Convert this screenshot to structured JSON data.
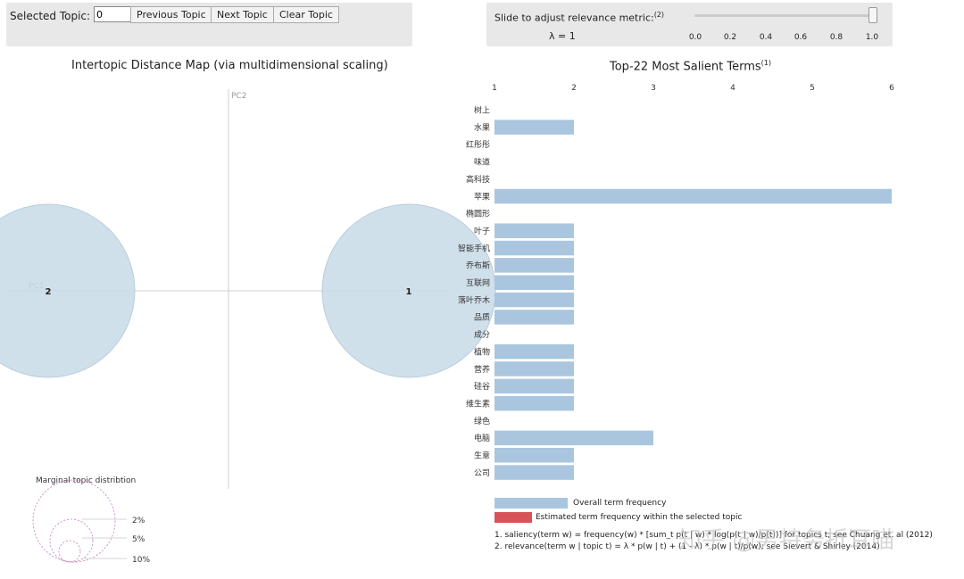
{
  "controls": {
    "selected_topic_label": "Selected Topic:",
    "selected_topic_value": "0",
    "prev_label": "Previous Topic",
    "next_label": "Next Topic",
    "clear_label": "Clear Topic",
    "slider_label": "Slide to adjust relevance metric:",
    "slider_sup": "(2)",
    "lambda_text": "λ = 1",
    "slider_ticks": [
      "0.0",
      "0.2",
      "0.4",
      "0.6",
      "0.8",
      "1.0"
    ],
    "slider_value": 1.0
  },
  "left_title": "Intertopic Distance Map (via multidimensional scaling)",
  "right_title": "Top-22 Most Salient Terms",
  "right_title_sup": "(1)",
  "chart_data": [
    {
      "type": "scatter",
      "title": "Intertopic Distance Map (via multidimensional scaling)",
      "xlabel": "PC1",
      "ylabel": "PC2",
      "topics": [
        {
          "label": "1",
          "pc1": 0.5,
          "pc2": 0.0,
          "size": 1.0
        },
        {
          "label": "2",
          "pc1": -0.5,
          "pc2": 0.0,
          "size": 1.0
        }
      ],
      "marginal_title": "Marginal topic distribtion",
      "marginal_legend": [
        "2%",
        "5%",
        "10%"
      ]
    },
    {
      "type": "bar",
      "title": "Top-22 Most Salient Terms",
      "x_ticks": [
        1,
        2,
        3,
        4,
        5,
        6
      ],
      "xlim": [
        1,
        6
      ],
      "categories": [
        "树上",
        "水果",
        "红彤彤",
        "味道",
        "高科技",
        "苹果",
        "椭圆形",
        "叶子",
        "智能手机",
        "乔布斯",
        "互联网",
        "落叶乔木",
        "品质",
        "成分",
        "植物",
        "营养",
        "硅谷",
        "维生素",
        "绿色",
        "电脑",
        "生意",
        "公司"
      ],
      "values": [
        1,
        2,
        1,
        1,
        1,
        6,
        1,
        2,
        2,
        2,
        2,
        2,
        2,
        1,
        2,
        2,
        2,
        2,
        1,
        3,
        2,
        2
      ],
      "legend": [
        "Overall term frequency",
        "Estimated term frequency within the selected topic"
      ],
      "colors": {
        "overall": "#a9c6de",
        "selected": "#d6545a"
      }
    }
  ],
  "notes": [
    "1. saliency(term w) = frequency(w) * [sum_t p(t | w) * log(p(t | w)/p(t))] for topics t; see Chuang et. al (2012)",
    "2. relevance(term w | topic t) = λ * p(w | t) + (1 - λ) * p(w | t)/p(w); see Sievert & Shirley (2014)"
  ],
  "watermark": "知乎 @男特务折耳喵"
}
